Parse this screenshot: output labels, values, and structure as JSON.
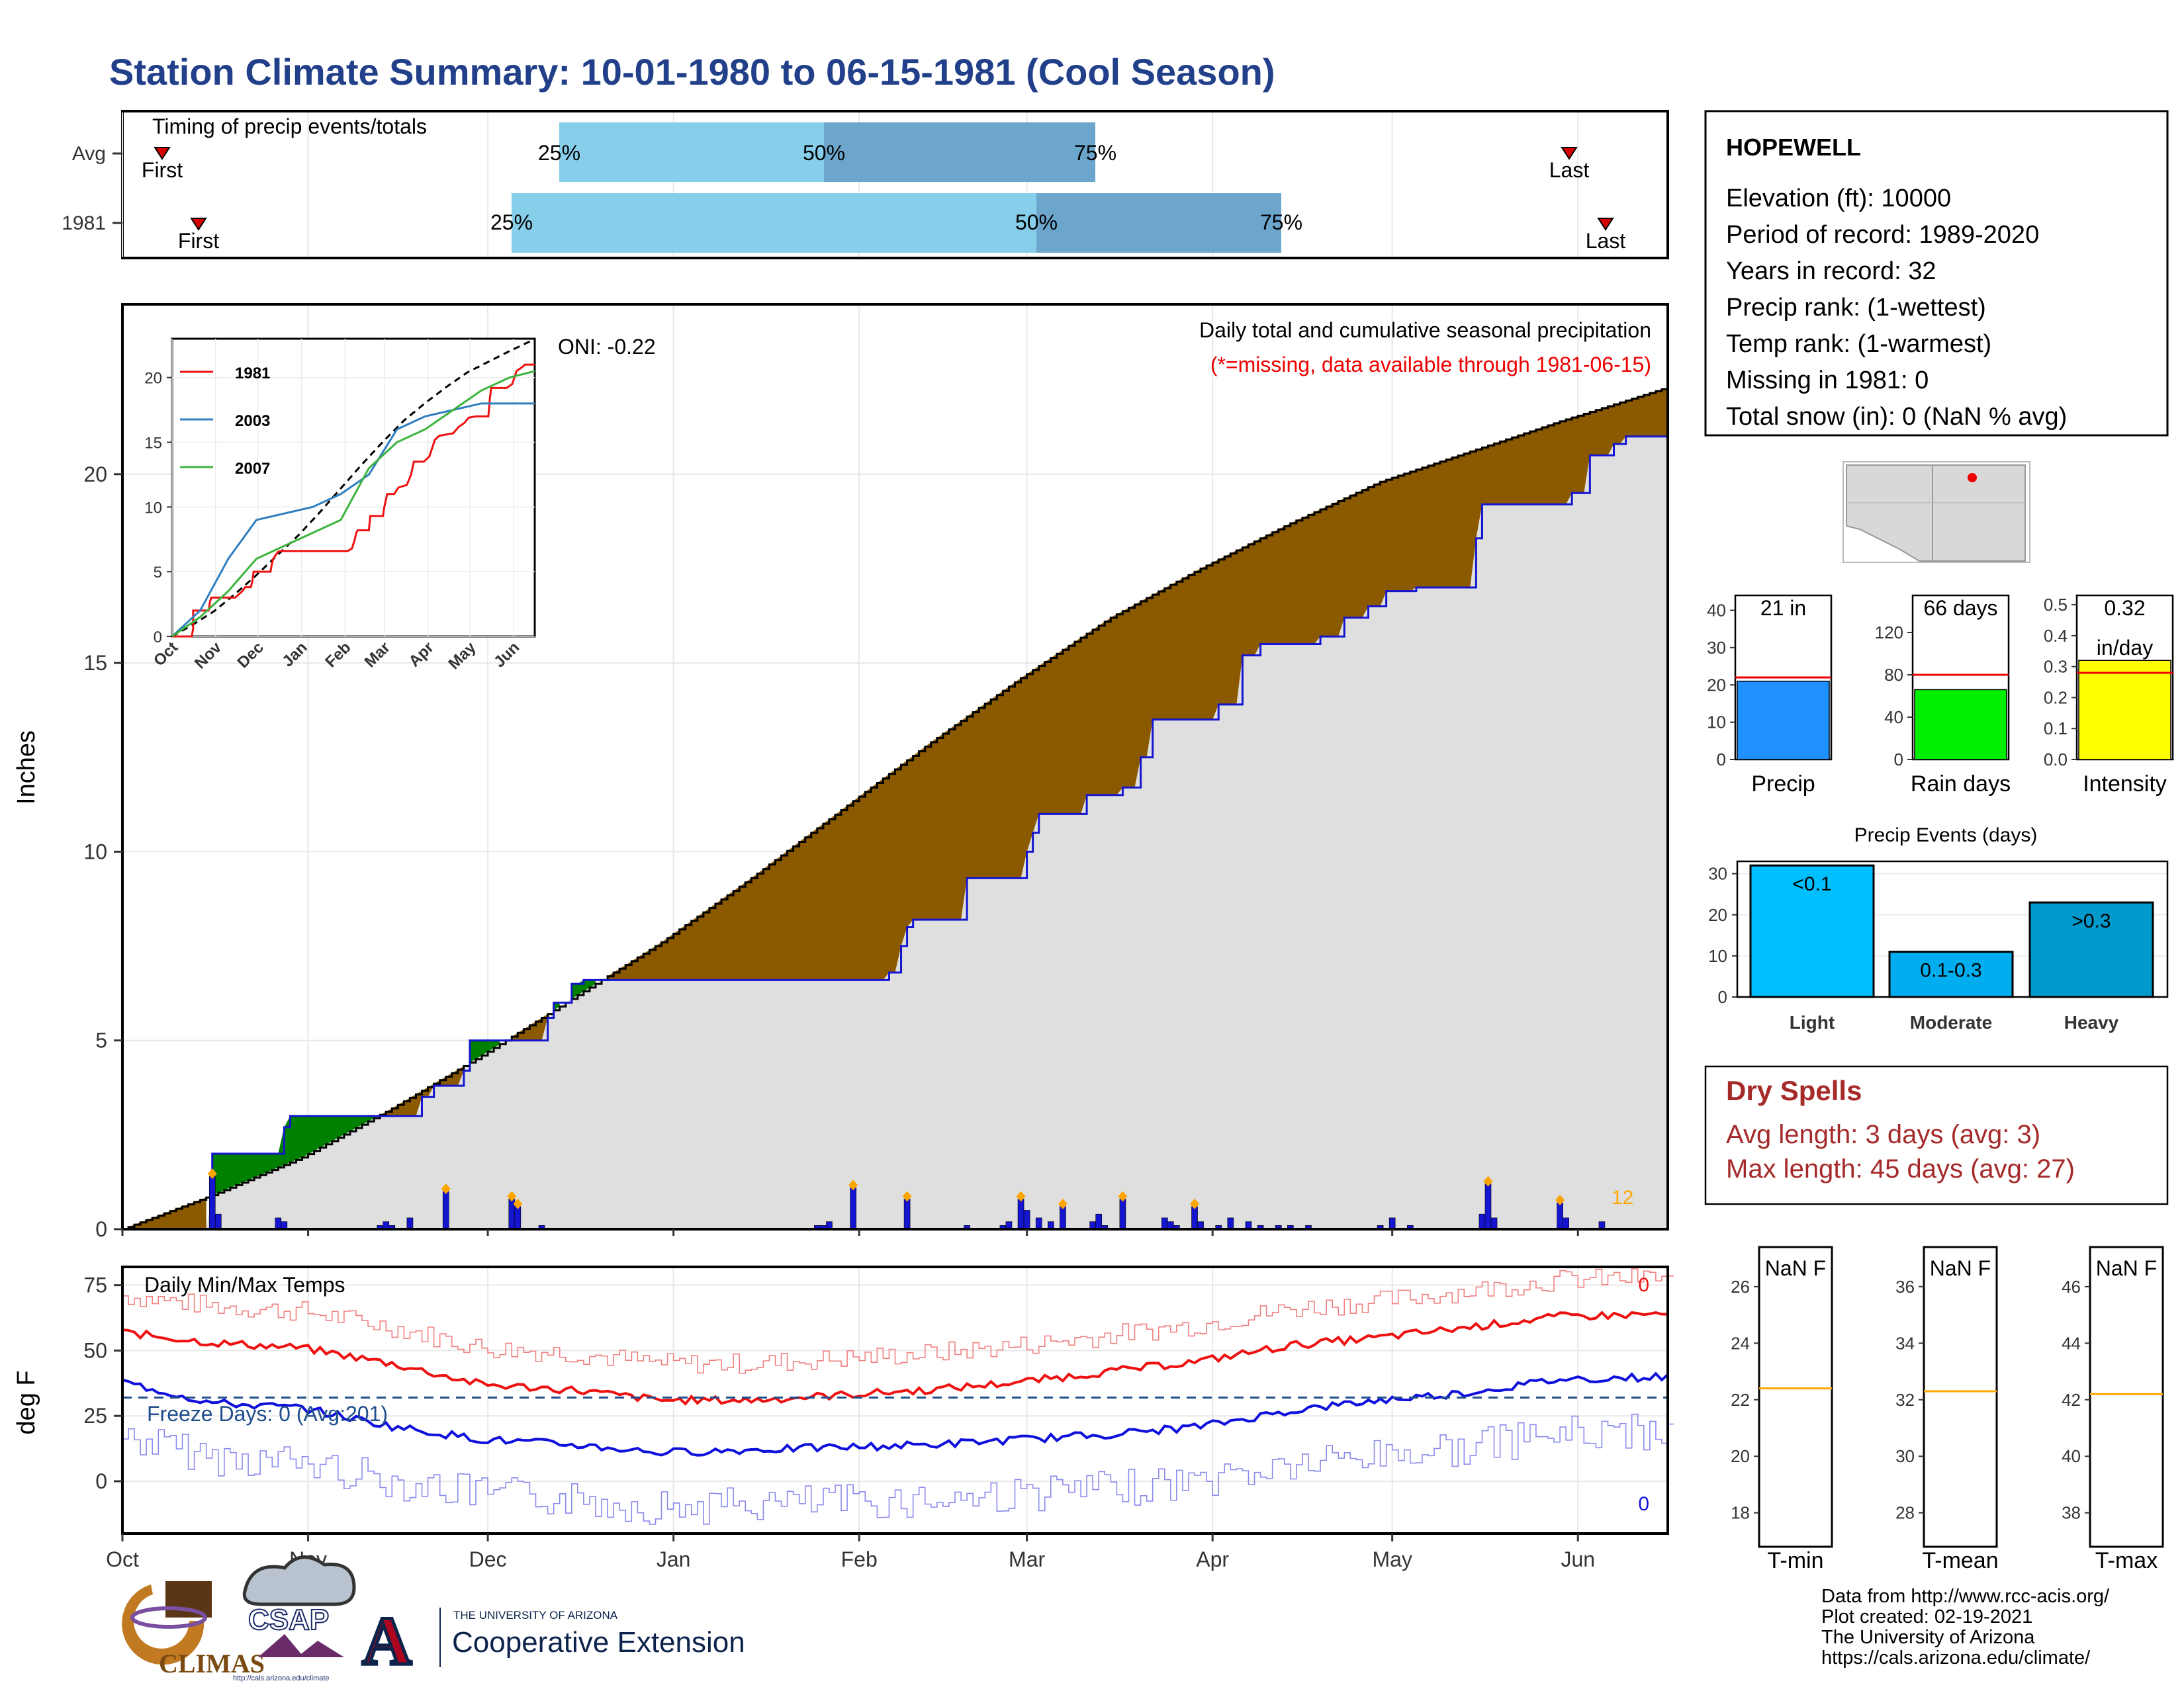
{
  "title": "Station Climate Summary: 10-01-1980 to 06-15-1981 (Cool Season)",
  "colors": {
    "title": "#22408a",
    "precip_fill": "#dfdfdf",
    "surplus": "#008000",
    "deficit": "#8b5a00",
    "cum_line": "#1515d0",
    "bars": "#1515d0",
    "marker": "#ffa500",
    "tmax": "#ee1111",
    "tmin": "#1010dd",
    "freeze_line": "#1f4e8c",
    "dry_spells": "#a52a2a"
  },
  "timing_panel": {
    "label": "Timing of precip events/totals",
    "rows": [
      {
        "name": "Avg",
        "first_label": "First",
        "last_label": "Last",
        "p25": "25%",
        "p50": "50%",
        "p75": "75%"
      },
      {
        "name": "1981",
        "first_label": "First",
        "last_label": "Last",
        "p25": "25%",
        "p50": "50%",
        "p75": "75%"
      }
    ]
  },
  "main_panel": {
    "ylabel": "Inches",
    "caption": "Daily total and cumulative seasonal precipitation",
    "missing_note": "(*=missing, data available through 1981-06-15)",
    "oni": "ONI: -0.22",
    "yticks": [
      "0",
      "5",
      "10",
      "15",
      "20"
    ],
    "count_label": "12"
  },
  "inset": {
    "yticks": [
      "0",
      "5",
      "10",
      "15",
      "20"
    ],
    "xticks": [
      "Oct",
      "Nov",
      "Dec",
      "Jan",
      "Feb",
      "Mar",
      "Apr",
      "May",
      "Jun"
    ],
    "legend": [
      "1981",
      "2003",
      "2007"
    ]
  },
  "temp_panel": {
    "label": "Daily Min/Max Temps",
    "ylabel": "deg F",
    "freeze_label": "Freeze Days: 0 (Avg:201)",
    "yticks": [
      "0",
      "25",
      "50",
      "75"
    ],
    "max_count": "0",
    "min_count": "0"
  },
  "x_months": [
    "Oct",
    "Nov",
    "Dec",
    "Jan",
    "Feb",
    "Mar",
    "Apr",
    "May",
    "Jun"
  ],
  "station": {
    "name": "HOPEWELL",
    "lines": [
      "Elevation (ft): 10000",
      "Period of record: 1989-2020",
      "Years in record: 32",
      "Precip rank:  (1-wettest)",
      "Temp rank:  (1-warmest)",
      "Missing in 1981: 0",
      "Total snow (in): 0 (NaN % avg)"
    ]
  },
  "summary_bars": [
    {
      "label": "Precip",
      "value_text": "21 in",
      "value": 21,
      "avg": 22,
      "ymax": 44,
      "yticks": [
        "0",
        "10",
        "20",
        "30",
        "40"
      ],
      "color": "#1e90ff"
    },
    {
      "label": "Rain days",
      "value_text": "66 days",
      "value": 66,
      "avg": 80,
      "ymax": 155,
      "yticks": [
        "0",
        "40",
        "80",
        "120"
      ],
      "color": "#00ee00"
    },
    {
      "label": "Intensity",
      "value_text": "0.32",
      "value_text2": "in/day",
      "value": 0.32,
      "avg": 0.28,
      "ymax": 0.53,
      "yticks": [
        "0.0",
        "0.1",
        "0.2",
        "0.3",
        "0.4",
        "0.5"
      ],
      "color": "#ffff00"
    }
  ],
  "precip_events": {
    "title": "Precip Events (days)",
    "yticks": [
      "0",
      "10",
      "20",
      "30"
    ],
    "bars": [
      {
        "category": "Light",
        "label": "<0.1",
        "value": 32,
        "color": "#00bfff"
      },
      {
        "category": "Moderate",
        "label": "0.1-0.3",
        "value": 11,
        "color": "#00aeef"
      },
      {
        "category": "Heavy",
        "label": ">0.3",
        "value": 23,
        "color": "#0099cc"
      }
    ]
  },
  "dry_spells": {
    "title": "Dry Spells",
    "avg_line": "Avg length: 3 days (avg: 3)",
    "max_line": "Max length: 45 days (avg: 27)"
  },
  "temp_boxes": [
    {
      "label": "T-min",
      "value_text": "NaN F",
      "avg": 22.4,
      "yticks": [
        "18",
        "20",
        "22",
        "24",
        "26"
      ],
      "ymin": 16.8,
      "ymax": 27.4
    },
    {
      "label": "T-mean",
      "value_text": "NaN F",
      "avg": 32.3,
      "yticks": [
        "28",
        "30",
        "32",
        "34",
        "36"
      ],
      "ymin": 26.8,
      "ymax": 37.4
    },
    {
      "label": "T-max",
      "value_text": "NaN F",
      "avg": 42.2,
      "yticks": [
        "38",
        "40",
        "42",
        "44",
        "46"
      ],
      "ymin": 36.8,
      "ymax": 47.4
    }
  ],
  "credits": [
    "Data from http://www.rcc-acis.org/",
    "Plot created: 02-19-2021",
    "The University of Arizona",
    "https://cals.arizona.edu/climate/"
  ],
  "logos": {
    "climas": "CLIMAS",
    "csap": "CSAP",
    "csap_url": "http://cals.arizona.edu/climate",
    "ua_small": "THE UNIVERSITY OF ARIZONA",
    "ua_big": "Cooperative Extension",
    "ua_letter": "A"
  },
  "chart_data": [
    {
      "type": "line",
      "title": "Daily total and cumulative seasonal precipitation",
      "ylabel": "Inches",
      "ylim": [
        0,
        24.5
      ],
      "x": [
        "Oct",
        "Nov",
        "Dec",
        "Jan",
        "Feb",
        "Mar",
        "Apr",
        "May",
        "Jun"
      ],
      "series": [
        {
          "name": "1981 cumulative (in)",
          "points": [
            [
              0,
              0
            ],
            [
              14,
              0
            ],
            [
              15,
              0.6
            ],
            [
              15,
              2.0
            ],
            [
              26,
              2.0
            ],
            [
              27,
              2.7
            ],
            [
              28,
              3.0
            ],
            [
              45,
              3.0
            ],
            [
              50,
              3.5
            ],
            [
              52,
              3.8
            ],
            [
              56,
              3.8
            ],
            [
              57,
              4.2
            ],
            [
              58,
              5.0
            ],
            [
              70,
              5.0
            ],
            [
              71,
              5.6
            ],
            [
              72,
              6.0
            ],
            [
              75,
              6.5
            ],
            [
              77,
              6.6
            ],
            [
              90,
              6.6
            ],
            [
              125,
              6.6
            ],
            [
              128,
              6.8
            ],
            [
              130,
              7.5
            ],
            [
              131,
              8.0
            ],
            [
              132,
              8.2
            ],
            [
              140,
              8.2
            ],
            [
              141,
              9.3
            ],
            [
              150,
              9.3
            ],
            [
              151,
              10.0
            ],
            [
              152,
              10.5
            ],
            [
              153,
              11.0
            ],
            [
              158,
              11.0
            ],
            [
              161,
              11.5
            ],
            [
              167,
              11.7
            ],
            [
              170,
              12.5
            ],
            [
              172,
              13.5
            ],
            [
              179,
              13.5
            ],
            [
              183,
              13.9
            ],
            [
              187,
              15.2
            ],
            [
              190,
              15.5
            ],
            [
              200,
              15.7
            ],
            [
              204,
              16.2
            ],
            [
              208,
              16.5
            ],
            [
              211,
              16.9
            ],
            [
              216,
              17.0
            ],
            [
              225,
              17.0
            ],
            [
              226,
              18.3
            ],
            [
              227,
              19.2
            ],
            [
              238,
              19.2
            ],
            [
              242,
              19.5
            ],
            [
              245,
              20.5
            ],
            [
              249,
              20.8
            ],
            [
              251,
              21.0
            ],
            [
              258,
              21.0
            ]
          ]
        },
        {
          "name": "Average cumulative (in)",
          "points": [
            [
              0,
              0
            ],
            [
              15,
              0.9
            ],
            [
              30,
              1.9
            ],
            [
              45,
              3.2
            ],
            [
              60,
              4.6
            ],
            [
              75,
              6.1
            ],
            [
              90,
              7.6
            ],
            [
              105,
              9.3
            ],
            [
              120,
              11.1
            ],
            [
              135,
              12.9
            ],
            [
              150,
              14.6
            ],
            [
              165,
              16.2
            ],
            [
              180,
              17.5
            ],
            [
              195,
              18.7
            ],
            [
              210,
              19.8
            ],
            [
              225,
              20.6
            ],
            [
              240,
              21.4
            ],
            [
              258,
              22.3
            ]
          ]
        }
      ],
      "daily_bars": [
        [
          15,
          1.4
        ],
        [
          16,
          0.4
        ],
        [
          26,
          0.3
        ],
        [
          27,
          0.2
        ],
        [
          43,
          0.1
        ],
        [
          44,
          0.2
        ],
        [
          45,
          0.1
        ],
        [
          48,
          0.3
        ],
        [
          54,
          1.0
        ],
        [
          65,
          0.8
        ],
        [
          66,
          0.6
        ],
        [
          70,
          0.1
        ],
        [
          116,
          0.1
        ],
        [
          117,
          0.1
        ],
        [
          118,
          0.2
        ],
        [
          122,
          1.1
        ],
        [
          131,
          0.8
        ],
        [
          141,
          0.1
        ],
        [
          147,
          0.1
        ],
        [
          148,
          0.2
        ],
        [
          150,
          0.8
        ],
        [
          151,
          0.5
        ],
        [
          153,
          0.3
        ],
        [
          155,
          0.2
        ],
        [
          157,
          0.6
        ],
        [
          162,
          0.2
        ],
        [
          163,
          0.4
        ],
        [
          164,
          0.1
        ],
        [
          167,
          0.8
        ],
        [
          174,
          0.3
        ],
        [
          175,
          0.2
        ],
        [
          176,
          0.1
        ],
        [
          179,
          0.6
        ],
        [
          180,
          0.2
        ],
        [
          183,
          0.1
        ],
        [
          185,
          0.3
        ],
        [
          188,
          0.2
        ],
        [
          190,
          0.1
        ],
        [
          193,
          0.1
        ],
        [
          195,
          0.1
        ],
        [
          198,
          0.1
        ],
        [
          210,
          0.1
        ],
        [
          212,
          0.3
        ],
        [
          215,
          0.1
        ],
        [
          227,
          0.4
        ],
        [
          228,
          1.2
        ],
        [
          229,
          0.3
        ],
        [
          240,
          0.7
        ],
        [
          241,
          0.3
        ],
        [
          247,
          0.2
        ]
      ]
    },
    {
      "type": "line",
      "title": "Daily Min/Max Temps",
      "ylabel": "deg F",
      "ylim": [
        -20,
        80
      ],
      "series": [
        {
          "name": "Avg Tmax (F)",
          "points": [
            [
              0,
              57
            ],
            [
              15,
              53
            ],
            [
              30,
              51
            ],
            [
              45,
              45
            ],
            [
              60,
              37
            ],
            [
              75,
              35
            ],
            [
              90,
              31
            ],
            [
              105,
              31
            ],
            [
              120,
              33
            ],
            [
              135,
              35
            ],
            [
              150,
              38
            ],
            [
              165,
              42
            ],
            [
              180,
              46
            ],
            [
              195,
              52
            ],
            [
              210,
              55
            ],
            [
              225,
              59
            ],
            [
              240,
              63
            ],
            [
              258,
              64
            ]
          ]
        },
        {
          "name": "Avg Tmin (F)",
          "points": [
            [
              0,
              38
            ],
            [
              15,
              30
            ],
            [
              30,
              28
            ],
            [
              45,
              21
            ],
            [
              60,
              16
            ],
            [
              75,
              14
            ],
            [
              90,
              11
            ],
            [
              105,
              12
            ],
            [
              120,
              13
            ],
            [
              135,
              14
            ],
            [
              150,
              16
            ],
            [
              165,
              18
            ],
            [
              180,
              21
            ],
            [
              195,
              27
            ],
            [
              210,
              31
            ],
            [
              225,
              34
            ],
            [
              240,
              39
            ],
            [
              258,
              40
            ]
          ]
        }
      ]
    },
    {
      "type": "bar",
      "categories": [
        "Precip"
      ],
      "values": [
        21
      ],
      "ylim": [
        0,
        44
      ]
    },
    {
      "type": "bar",
      "categories": [
        "Rain days"
      ],
      "values": [
        66
      ],
      "ylim": [
        0,
        155
      ]
    },
    {
      "type": "bar",
      "categories": [
        "Intensity"
      ],
      "values": [
        0.32
      ],
      "ylim": [
        0,
        0.53
      ]
    },
    {
      "type": "bar",
      "title": "Precip Events (days)",
      "categories": [
        "Light",
        "Moderate",
        "Heavy"
      ],
      "values": [
        32,
        11,
        23
      ],
      "ylim": [
        0,
        33
      ]
    }
  ]
}
